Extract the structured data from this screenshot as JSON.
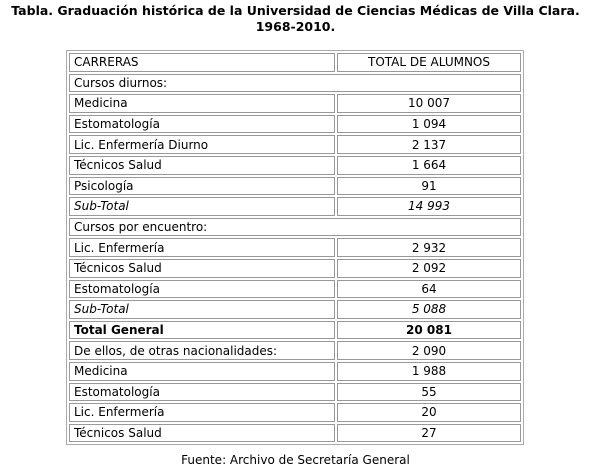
{
  "title": "Tabla. Graduación histórica de la Universidad de Ciencias Médicas de Villa Clara. 1968-2010.",
  "table": {
    "header": [
      "CARRERAS",
      "TOTAL DE ALUMNOS"
    ],
    "rows": [
      [
        "Cursos diurnos:"
      ],
      [
        "Medicina",
        "10 007"
      ],
      [
        "Estomatología",
        "1 094"
      ],
      [
        "Lic. Enfermería Diurno",
        "2 137"
      ],
      [
        "Técnicos Salud",
        "1 664"
      ],
      [
        "Psicología",
        "91"
      ],
      [
        "Sub-Total",
        "14 993"
      ],
      [
        "Cursos por encuentro:"
      ],
      [
        "Lic. Enfermería",
        "2 932"
      ],
      [
        "Técnicos Salud",
        "2 092"
      ],
      [
        "Estomatología",
        "64"
      ],
      [
        "Sub-Total",
        "5 088"
      ],
      [
        "Total General",
        "20 081"
      ],
      [
        "De ellos, de otras nacionalidades:",
        "2 090"
      ],
      [
        "Medicina",
        "1 988"
      ],
      [
        "Estomatología",
        "55"
      ],
      [
        "Lic. Enfermería",
        "20"
      ],
      [
        "Técnicos Salud",
        "27"
      ]
    ]
  },
  "source": "Fuente: Archivo de Secretaría General"
}
